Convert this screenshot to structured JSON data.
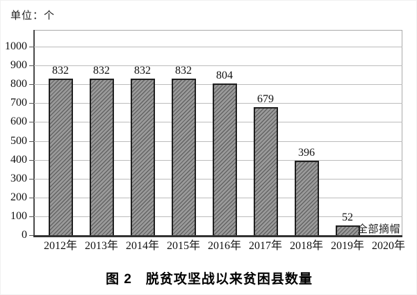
{
  "figure": {
    "unit_label": "单位：个",
    "caption": "图 2　脱贫攻坚战以来贫困县数量"
  },
  "chart_data": {
    "type": "bar",
    "title": "图 2　脱贫攻坚战以来贫困县数量",
    "unit": "单位：个",
    "categories": [
      "2012年",
      "2013年",
      "2014年",
      "2015年",
      "2016年",
      "2017年",
      "2018年",
      "2019年",
      "2020年"
    ],
    "values": [
      832,
      832,
      832,
      832,
      804,
      679,
      396,
      52,
      null
    ],
    "bar_value_labels": [
      "832",
      "832",
      "832",
      "832",
      "804",
      "679",
      "396",
      "52",
      ""
    ],
    "annotation": {
      "text": "全部摘帽",
      "category": "2020年"
    },
    "xlabel": "",
    "ylabel": "",
    "ylim": [
      0,
      1000
    ],
    "yticks": [
      0,
      100,
      200,
      300,
      400,
      500,
      600,
      700,
      800,
      900,
      1000
    ],
    "grid": true,
    "legend": "none",
    "colors": {
      "bar_fill": "#9a9a9a",
      "bar_hatch": "#5a5a5a",
      "bar_border": "#1f1f1f",
      "gridline": "#bcbcbc",
      "axis": "#3a3a3a",
      "text": "#111111"
    }
  }
}
